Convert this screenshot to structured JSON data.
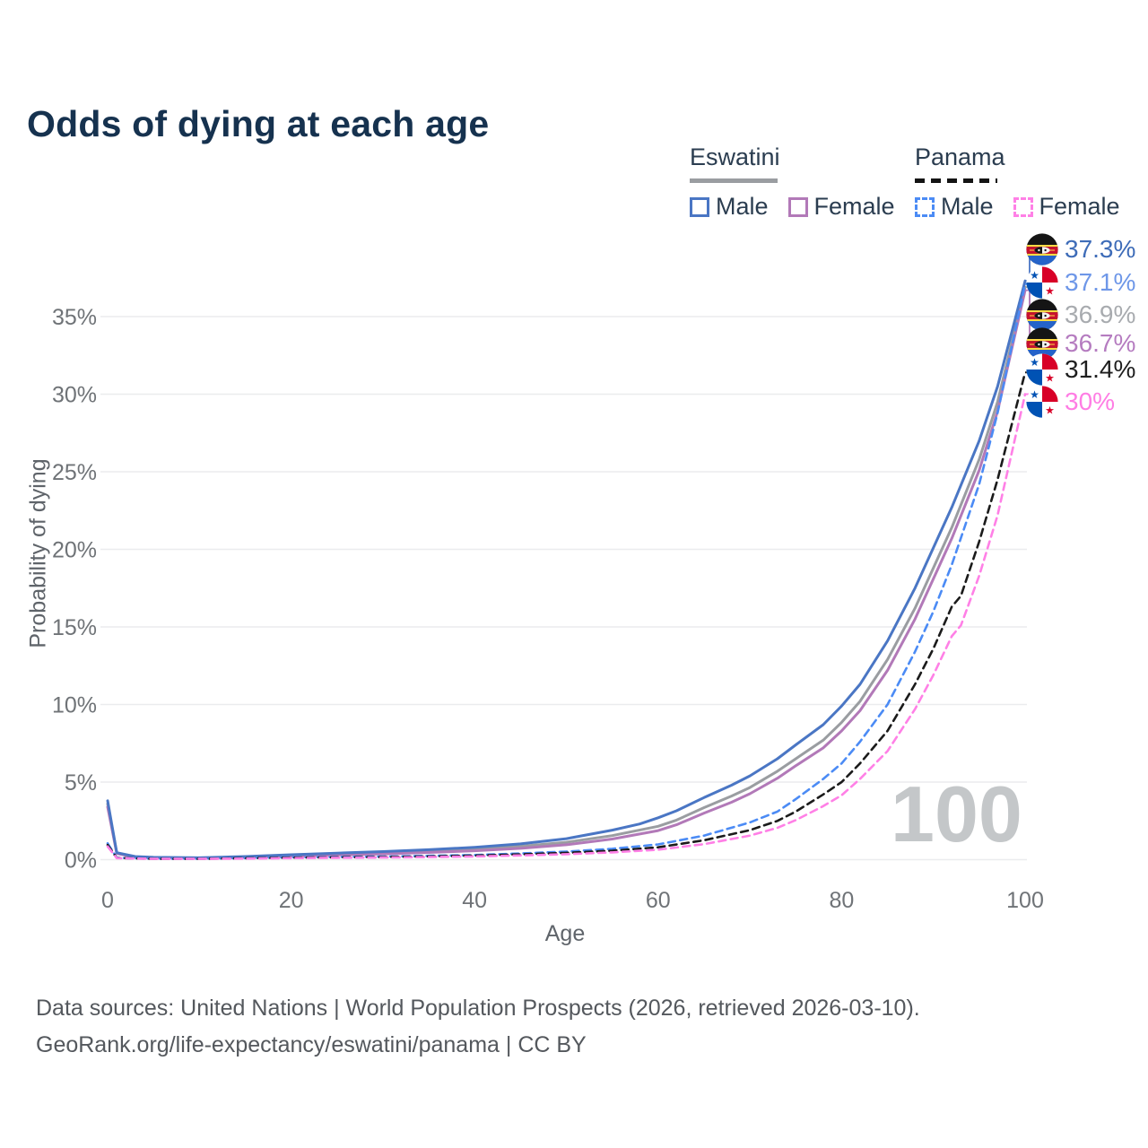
{
  "title": "Odds of dying at each age",
  "legend": {
    "groups": [
      {
        "label": "Eswatini",
        "line_style": "solid",
        "line_color": "#9A9DA1",
        "items": [
          {
            "label": "Male",
            "color": "#4A76C4",
            "dash": "solid"
          },
          {
            "label": "Female",
            "color": "#B279B8",
            "dash": "solid"
          }
        ]
      },
      {
        "label": "Panama",
        "line_style": "dashed",
        "line_color": "#141414",
        "items": [
          {
            "label": "Male",
            "color": "#4B8BF5",
            "dash": "dashed"
          },
          {
            "label": "Female",
            "color": "#FF80E6",
            "dash": "dashed"
          }
        ]
      }
    ]
  },
  "chart_data": {
    "type": "line",
    "title": "Odds of dying at each age",
    "xlabel": "Age",
    "ylabel": "Probability of dying",
    "xlim": [
      0,
      100
    ],
    "ylim_percent": [
      0,
      40
    ],
    "grid": "horizontal",
    "watermark": "100",
    "xticks": [
      {
        "label": "0",
        "value": 0
      },
      {
        "label": "20",
        "value": 20
      },
      {
        "label": "40",
        "value": 40
      },
      {
        "label": "60",
        "value": 60
      },
      {
        "label": "80",
        "value": 80
      },
      {
        "label": "100",
        "value": 100
      }
    ],
    "yticks": [
      {
        "label": "0%",
        "value": 0
      },
      {
        "label": "5%",
        "value": 5
      },
      {
        "label": "10%",
        "value": 10
      },
      {
        "label": "15%",
        "value": 15
      },
      {
        "label": "20%",
        "value": 20
      },
      {
        "label": "25%",
        "value": 25
      },
      {
        "label": "30%",
        "value": 30
      },
      {
        "label": "35%",
        "value": 35
      }
    ],
    "series": [
      {
        "name": "eswatini-all",
        "country": "Eswatini",
        "group": "combined",
        "color": "#9A9DA1",
        "dash": "solid",
        "points": [
          [
            0,
            3.6
          ],
          [
            1,
            0.42
          ],
          [
            3,
            0.18
          ],
          [
            5,
            0.13
          ],
          [
            10,
            0.1
          ],
          [
            15,
            0.17
          ],
          [
            20,
            0.27
          ],
          [
            25,
            0.36
          ],
          [
            30,
            0.44
          ],
          [
            35,
            0.54
          ],
          [
            40,
            0.67
          ],
          [
            45,
            0.86
          ],
          [
            50,
            1.12
          ],
          [
            55,
            1.55
          ],
          [
            60,
            2.15
          ],
          [
            62,
            2.55
          ],
          [
            65,
            3.35
          ],
          [
            68,
            4.1
          ],
          [
            70,
            4.65
          ],
          [
            73,
            5.7
          ],
          [
            75,
            6.5
          ],
          [
            78,
            7.7
          ],
          [
            80,
            8.85
          ],
          [
            82,
            10.2
          ],
          [
            85,
            12.9
          ],
          [
            88,
            16.2
          ],
          [
            90,
            18.8
          ],
          [
            92,
            21.4
          ],
          [
            95,
            25.8
          ],
          [
            97,
            29.5
          ],
          [
            100,
            36.9
          ]
        ]
      },
      {
        "name": "eswatini-female",
        "country": "Eswatini",
        "group": "female",
        "color": "#B279B8",
        "dash": "solid",
        "points": [
          [
            0,
            3.4
          ],
          [
            1,
            0.4
          ],
          [
            3,
            0.16
          ],
          [
            5,
            0.12
          ],
          [
            10,
            0.09
          ],
          [
            15,
            0.14
          ],
          [
            20,
            0.22
          ],
          [
            25,
            0.3
          ],
          [
            30,
            0.37
          ],
          [
            35,
            0.46
          ],
          [
            40,
            0.57
          ],
          [
            45,
            0.73
          ],
          [
            50,
            0.96
          ],
          [
            55,
            1.33
          ],
          [
            60,
            1.87
          ],
          [
            62,
            2.25
          ],
          [
            65,
            3.0
          ],
          [
            68,
            3.7
          ],
          [
            70,
            4.25
          ],
          [
            73,
            5.25
          ],
          [
            75,
            6.05
          ],
          [
            78,
            7.2
          ],
          [
            80,
            8.3
          ],
          [
            82,
            9.6
          ],
          [
            85,
            12.2
          ],
          [
            88,
            15.5
          ],
          [
            90,
            18.1
          ],
          [
            92,
            20.7
          ],
          [
            95,
            25.1
          ],
          [
            97,
            28.9
          ],
          [
            100,
            36.7
          ]
        ]
      },
      {
        "name": "eswatini-male",
        "country": "Eswatini",
        "group": "male",
        "color": "#4A76C4",
        "dash": "solid",
        "points": [
          [
            0,
            3.8
          ],
          [
            1,
            0.45
          ],
          [
            3,
            0.2
          ],
          [
            5,
            0.15
          ],
          [
            10,
            0.12
          ],
          [
            15,
            0.2
          ],
          [
            20,
            0.32
          ],
          [
            25,
            0.42
          ],
          [
            30,
            0.52
          ],
          [
            35,
            0.64
          ],
          [
            40,
            0.8
          ],
          [
            45,
            1.02
          ],
          [
            50,
            1.35
          ],
          [
            55,
            1.9
          ],
          [
            58,
            2.3
          ],
          [
            60,
            2.7
          ],
          [
            62,
            3.15
          ],
          [
            65,
            4.0
          ],
          [
            68,
            4.8
          ],
          [
            70,
            5.4
          ],
          [
            73,
            6.5
          ],
          [
            75,
            7.4
          ],
          [
            78,
            8.7
          ],
          [
            80,
            9.9
          ],
          [
            82,
            11.3
          ],
          [
            85,
            14.1
          ],
          [
            88,
            17.5
          ],
          [
            90,
            20.1
          ],
          [
            92,
            22.7
          ],
          [
            95,
            27.0
          ],
          [
            97,
            30.5
          ],
          [
            100,
            37.3
          ]
        ]
      },
      {
        "name": "panama-male",
        "country": "Panama",
        "group": "male",
        "color": "#4B8BF5",
        "dash": "dashed",
        "points": [
          [
            0,
            1.05
          ],
          [
            1,
            0.12
          ],
          [
            5,
            0.06
          ],
          [
            10,
            0.06
          ],
          [
            15,
            0.1
          ],
          [
            20,
            0.15
          ],
          [
            25,
            0.18
          ],
          [
            30,
            0.2
          ],
          [
            35,
            0.25
          ],
          [
            40,
            0.3
          ],
          [
            45,
            0.4
          ],
          [
            50,
            0.52
          ],
          [
            55,
            0.7
          ],
          [
            60,
            0.98
          ],
          [
            65,
            1.55
          ],
          [
            70,
            2.4
          ],
          [
            73,
            3.1
          ],
          [
            75,
            3.9
          ],
          [
            78,
            5.2
          ],
          [
            80,
            6.2
          ],
          [
            82,
            7.6
          ],
          [
            85,
            10.0
          ],
          [
            88,
            13.4
          ],
          [
            90,
            16.0
          ],
          [
            92,
            19.0
          ],
          [
            95,
            24.2
          ],
          [
            97,
            28.8
          ],
          [
            100,
            37.1
          ]
        ]
      },
      {
        "name": "panama-all",
        "country": "Panama",
        "group": "combined",
        "color": "#1B1B1B",
        "dash": "dashed",
        "points": [
          [
            0,
            0.95
          ],
          [
            1,
            0.11
          ],
          [
            5,
            0.05
          ],
          [
            10,
            0.05
          ],
          [
            15,
            0.09
          ],
          [
            20,
            0.13
          ],
          [
            25,
            0.15
          ],
          [
            30,
            0.17
          ],
          [
            35,
            0.21
          ],
          [
            40,
            0.26
          ],
          [
            45,
            0.34
          ],
          [
            50,
            0.44
          ],
          [
            55,
            0.58
          ],
          [
            60,
            0.8
          ],
          [
            65,
            1.25
          ],
          [
            70,
            1.9
          ],
          [
            73,
            2.5
          ],
          [
            75,
            3.1
          ],
          [
            78,
            4.2
          ],
          [
            80,
            5.0
          ],
          [
            82,
            6.2
          ],
          [
            85,
            8.3
          ],
          [
            88,
            11.3
          ],
          [
            90,
            13.6
          ],
          [
            92,
            16.3
          ],
          [
            93,
            17.0
          ],
          [
            95,
            20.5
          ],
          [
            97,
            24.5
          ],
          [
            100,
            31.4
          ]
        ]
      },
      {
        "name": "panama-female",
        "country": "Panama",
        "group": "female",
        "color": "#FF80E6",
        "dash": "dashed",
        "points": [
          [
            0,
            0.85
          ],
          [
            1,
            0.1
          ],
          [
            5,
            0.05
          ],
          [
            10,
            0.05
          ],
          [
            15,
            0.07
          ],
          [
            20,
            0.1
          ],
          [
            25,
            0.12
          ],
          [
            30,
            0.14
          ],
          [
            35,
            0.17
          ],
          [
            40,
            0.21
          ],
          [
            45,
            0.27
          ],
          [
            50,
            0.35
          ],
          [
            55,
            0.47
          ],
          [
            60,
            0.64
          ],
          [
            65,
            1.0
          ],
          [
            70,
            1.55
          ],
          [
            73,
            2.05
          ],
          [
            75,
            2.55
          ],
          [
            78,
            3.45
          ],
          [
            80,
            4.15
          ],
          [
            82,
            5.2
          ],
          [
            85,
            7.0
          ],
          [
            88,
            9.7
          ],
          [
            90,
            11.9
          ],
          [
            92,
            14.4
          ],
          [
            93,
            15.1
          ],
          [
            95,
            18.3
          ],
          [
            97,
            22.2
          ],
          [
            100,
            30.0
          ]
        ]
      }
    ],
    "end_labels": [
      {
        "text": "37.3%",
        "value": 37.3,
        "color": "#3E6CB8",
        "flag": "eswatini",
        "series": "eswatini-male"
      },
      {
        "text": "37.1%",
        "value": 37.1,
        "color": "#6E97E8",
        "flag": "panama",
        "series": "panama-male"
      },
      {
        "text": "36.9%",
        "value": 36.9,
        "color": "#A8ABAF",
        "flag": "eswatini",
        "series": "eswatini-all"
      },
      {
        "text": "36.7%",
        "value": 36.7,
        "color": "#B57CC0",
        "flag": "eswatini",
        "series": "eswatini-female"
      },
      {
        "text": "31.4%",
        "value": 31.4,
        "color": "#1E1E1E",
        "flag": "panama",
        "series": "panama-all"
      },
      {
        "text": "30%",
        "value": 30.0,
        "color": "#FF7DE4",
        "flag": "panama",
        "series": "panama-female"
      }
    ]
  },
  "footer": {
    "line1": "Data sources: United Nations | World Population Prospects (2026, retrieved 2026-03-10).",
    "line2": "GeoRank.org/life-expectancy/eswatini/panama | CC BY"
  },
  "colors": {
    "title": "#16324F",
    "axis_text": "#6F7377",
    "grid": "#EBECEE",
    "watermark": "#C4C7C9",
    "footer_text": "#54585D"
  }
}
